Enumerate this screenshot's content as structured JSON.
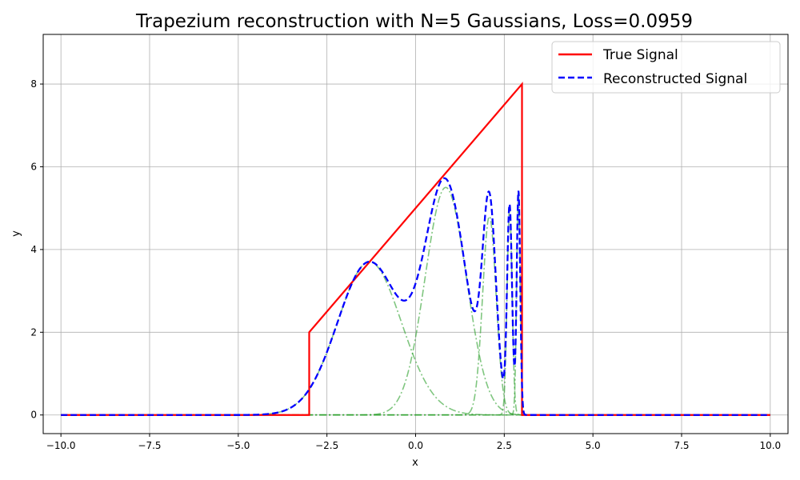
{
  "chart_data": {
    "type": "line",
    "title": "Trapezium reconstruction with N=5 Gaussians, Loss=0.0959",
    "xlabel": "x",
    "ylabel": "y",
    "xlim": [
      -10.5,
      10.5
    ],
    "ylim": [
      -0.45,
      9.2
    ],
    "xticks": [
      -10,
      -7.5,
      -5,
      -2.5,
      0,
      2.5,
      5,
      7.5,
      10
    ],
    "xtick_labels": [
      "−10.0",
      "−7.5",
      "−5.0",
      "−2.5",
      "0.0",
      "2.5",
      "5.0",
      "7.5",
      "10.0"
    ],
    "yticks": [
      0,
      2,
      4,
      6,
      8
    ],
    "ytick_labels": [
      "0",
      "2",
      "4",
      "6",
      "8"
    ],
    "grid": true,
    "legend_position": "top-right",
    "colors": {
      "true_signal": "#ff0000",
      "reconstructed": "#0000ff",
      "components": "#2ca02c"
    },
    "legend": [
      {
        "label": "True Signal",
        "style": "solid",
        "color": "#ff0000"
      },
      {
        "label": "Reconstructed Signal",
        "style": "dashed",
        "color": "#0000ff"
      }
    ],
    "true_signal": {
      "x": [
        -10,
        -3,
        -3,
        3,
        3,
        10
      ],
      "y": [
        0,
        0,
        2,
        8,
        0,
        0
      ]
    },
    "gaussians": [
      {
        "amplitude": 3.7,
        "mean": -1.3,
        "sigma": 0.9
      },
      {
        "amplitude": 5.5,
        "mean": 0.85,
        "sigma": 0.58
      },
      {
        "amplitude": 4.8,
        "mean": 2.08,
        "sigma": 0.19
      },
      {
        "amplitude": 5.0,
        "mean": 2.65,
        "sigma": 0.07
      },
      {
        "amplitude": 5.4,
        "mean": 2.9,
        "sigma": 0.05
      }
    ],
    "x_range": [
      -10,
      10
    ]
  }
}
